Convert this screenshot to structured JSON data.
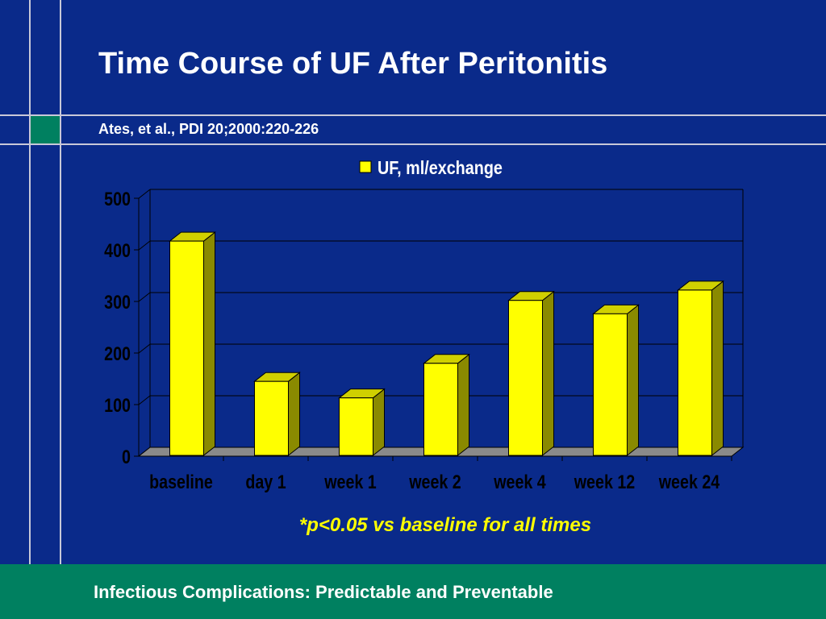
{
  "slide": {
    "title": "Time Course of UF After Peritonitis",
    "citation": "Ates, et al., PDI 20;2000:220-226",
    "footnote": "*p<0.05 vs baseline for all times",
    "footer": "Infectious Complications: Predictable and Preventable"
  },
  "colors": {
    "background": "#0a2a8a",
    "accent_green": "#008060",
    "bar_front": "#ffff00",
    "bar_top": "#d0d000",
    "bar_side": "#8a8a00",
    "footnote": "#ffff00"
  },
  "chart_data": {
    "type": "bar",
    "title": "",
    "xlabel": "",
    "ylabel": "",
    "categories": [
      "baseline",
      "day 1",
      "week 1",
      "week 2",
      "week 4",
      "week 12",
      "week 24"
    ],
    "series": [
      {
        "name": "UF, ml/exchange",
        "values": [
          417,
          145,
          113,
          180,
          302,
          276,
          322
        ]
      }
    ],
    "ylim": [
      0,
      500
    ],
    "yticks": [
      0,
      100,
      200,
      300,
      400,
      500
    ],
    "ytick_labels": [
      "0",
      "100",
      "200",
      "300",
      "400",
      "500"
    ],
    "grid": true,
    "legend_position": "top",
    "three_d": true
  }
}
